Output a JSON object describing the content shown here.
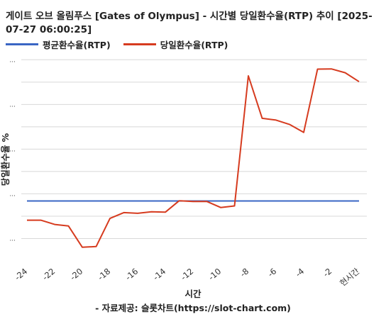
{
  "title": "게이트 오브 올림푸스 [Gates of Olympus] - 시간별 당일환수율(RTP) 추이 [2025-07-27 06:00:25]",
  "source": "- 자료제공: 슬롯차트(https://slot-chart.com)",
  "colors": {
    "avg": "#3a66c4",
    "today": "#d63b1f",
    "grid": "#d8d8d8",
    "axis": "#333333"
  },
  "chart_data": {
    "type": "line",
    "title": "게이트 오브 올림푸스 [Gates of Olympus] - 시간별 당일환수율(RTP) 추이 [2025-07-27 06:00:25]",
    "xlabel": "시간",
    "ylabel": "당일환수율 %",
    "x": [
      -24,
      -23,
      -22,
      -21,
      -20,
      -19,
      -18,
      -17,
      -16,
      -15,
      -14,
      -13,
      -12,
      -11,
      -10,
      -9,
      -8,
      -7,
      -6,
      -5,
      -4,
      -3,
      -2,
      -1,
      0
    ],
    "x_tick_labels": [
      "-24",
      "-22",
      "-20",
      "-18",
      "-16",
      "-14",
      "-12",
      "-10",
      "-8",
      "-6",
      "-4",
      "-2",
      "현시간"
    ],
    "x_tick_positions": [
      -24,
      -22,
      -20,
      -18,
      -16,
      -14,
      -12,
      -10,
      -8,
      -6,
      -4,
      -2,
      0
    ],
    "y_tick_labels": [
      "...",
      "...",
      "...",
      "...",
      "..."
    ],
    "y_tick_values": [
      10,
      30,
      50,
      70,
      90
    ],
    "ylim": [
      0,
      92
    ],
    "grid": true,
    "legend_position": "top-left",
    "series": [
      {
        "name": "평균환수율(RTP)",
        "color": "#3a66c4",
        "values": [
          26.8,
          26.8,
          26.8,
          26.8,
          26.8,
          26.8,
          26.8,
          26.8,
          26.8,
          26.8,
          26.8,
          26.8,
          26.8,
          26.8,
          26.8,
          26.8,
          26.8,
          26.8,
          26.8,
          26.8,
          26.8,
          26.8,
          26.8,
          26.8,
          26.8
        ]
      },
      {
        "name": "당일환수율(RTP)",
        "color": "#d63b1f",
        "values": [
          18.2,
          18.2,
          16.3,
          15.6,
          6.1,
          6.4,
          19.0,
          21.6,
          21.3,
          22.0,
          21.8,
          26.9,
          26.6,
          26.6,
          23.9,
          24.6,
          82.8,
          63.8,
          63.0,
          61.0,
          57.5,
          85.8,
          85.9,
          84.2,
          80.2
        ]
      }
    ]
  }
}
